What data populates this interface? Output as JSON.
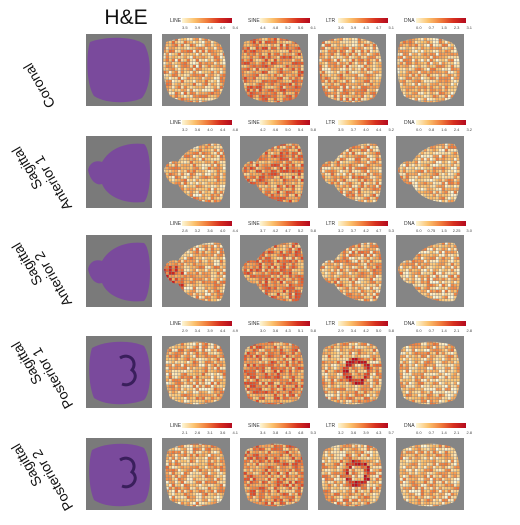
{
  "header": {
    "he_title": "H&E"
  },
  "rows": [
    {
      "label_lines": [
        "Coronal"
      ],
      "legends": [
        {
          "name": "LINE",
          "ticks": [
            "3.5",
            "3.9",
            "4.4",
            "4.9",
            "5.4"
          ]
        },
        {
          "name": "SINE",
          "ticks": [
            "4.4",
            "4.8",
            "5.2",
            "5.6",
            "6.1"
          ]
        },
        {
          "name": "LTR",
          "ticks": [
            "3.6",
            "3.9",
            "4.3",
            "4.7",
            "5.1"
          ]
        },
        {
          "name": "DNA",
          "ticks": [
            "0.0",
            "0.7",
            "1.5",
            "2.3",
            "3.1"
          ]
        }
      ]
    },
    {
      "label_lines": [
        "Sagittal",
        "Anterior 1"
      ],
      "legends": [
        {
          "name": "LINE",
          "ticks": [
            "3.2",
            "3.6",
            "4.0",
            "4.4",
            "4.8"
          ]
        },
        {
          "name": "SINE",
          "ticks": [
            "4.2",
            "4.6",
            "5.0",
            "5.4",
            "5.8"
          ]
        },
        {
          "name": "LTR",
          "ticks": [
            "3.5",
            "3.7",
            "4.0",
            "4.4",
            "5.2"
          ]
        },
        {
          "name": "DNA",
          "ticks": [
            "0.0",
            "0.8",
            "1.6",
            "2.4",
            "3.2"
          ]
        }
      ]
    },
    {
      "label_lines": [
        "Sagittal",
        "Anterior 2"
      ],
      "legends": [
        {
          "name": "LINE",
          "ticks": [
            "2.8",
            "3.2",
            "3.6",
            "4.0",
            "4.4"
          ]
        },
        {
          "name": "SINE",
          "ticks": [
            "3.7",
            "4.2",
            "4.7",
            "5.2",
            "5.8"
          ]
        },
        {
          "name": "LTR",
          "ticks": [
            "3.2",
            "3.7",
            "4.2",
            "4.7",
            "5.3"
          ]
        },
        {
          "name": "DNA",
          "ticks": [
            "0.0",
            "0.75",
            "1.5",
            "2.25",
            "3.0"
          ]
        }
      ]
    },
    {
      "label_lines": [
        "Sagittal",
        "Posterior 1"
      ],
      "legends": [
        {
          "name": "LINE",
          "ticks": [
            "2.9",
            "3.4",
            "3.9",
            "4.4",
            "4.9"
          ]
        },
        {
          "name": "SINE",
          "ticks": [
            "3.0",
            "3.6",
            "4.3",
            "5.1",
            "5.8"
          ]
        },
        {
          "name": "LTR",
          "ticks": [
            "2.9",
            "3.4",
            "4.2",
            "5.0",
            "5.8"
          ]
        },
        {
          "name": "DNA",
          "ticks": [
            "0.0",
            "0.7",
            "1.4",
            "2.1",
            "2.8"
          ]
        }
      ]
    },
    {
      "label_lines": [
        "Sagittal",
        "Posterior 2"
      ],
      "legends": [
        {
          "name": "LINE",
          "ticks": [
            "2.1",
            "2.6",
            "3.1",
            "3.6",
            "4.1"
          ]
        },
        {
          "name": "SINE",
          "ticks": [
            "3.4",
            "3.8",
            "4.3",
            "4.8",
            "5.3"
          ]
        },
        {
          "name": "LTR",
          "ticks": [
            "3.2",
            "3.6",
            "3.9",
            "4.3",
            "5.7"
          ]
        },
        {
          "name": "DNA",
          "ticks": [
            "0.0",
            "0.7",
            "1.4",
            "2.1",
            "2.8"
          ]
        }
      ]
    }
  ],
  "colors": {
    "he_stain": "#7a4a9c",
    "panel_bg": "#858585",
    "map_low": "#fdf6d6",
    "map_high": "#b40a1f"
  }
}
